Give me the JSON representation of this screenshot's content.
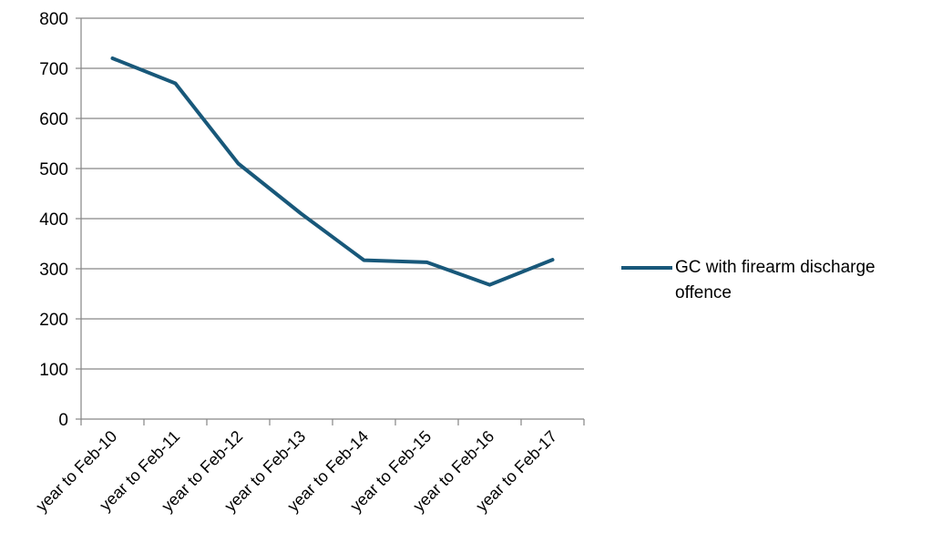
{
  "chart_data": {
    "type": "line",
    "categories": [
      "year to Feb-10",
      "year to Feb-11",
      "year to Feb-12",
      "year to Feb-13",
      "year to Feb-14",
      "year to Feb-15",
      "year to Feb-16",
      "year to Feb-17"
    ],
    "series": [
      {
        "name": "GC with firearm discharge offence",
        "values": [
          720,
          670,
          510,
          410,
          317,
          313,
          268,
          318
        ],
        "color": "#18587A"
      }
    ],
    "ylim": [
      0,
      800
    ],
    "yticks": [
      0,
      100,
      200,
      300,
      400,
      500,
      600,
      700,
      800
    ],
    "grid": true,
    "legend": "right"
  }
}
